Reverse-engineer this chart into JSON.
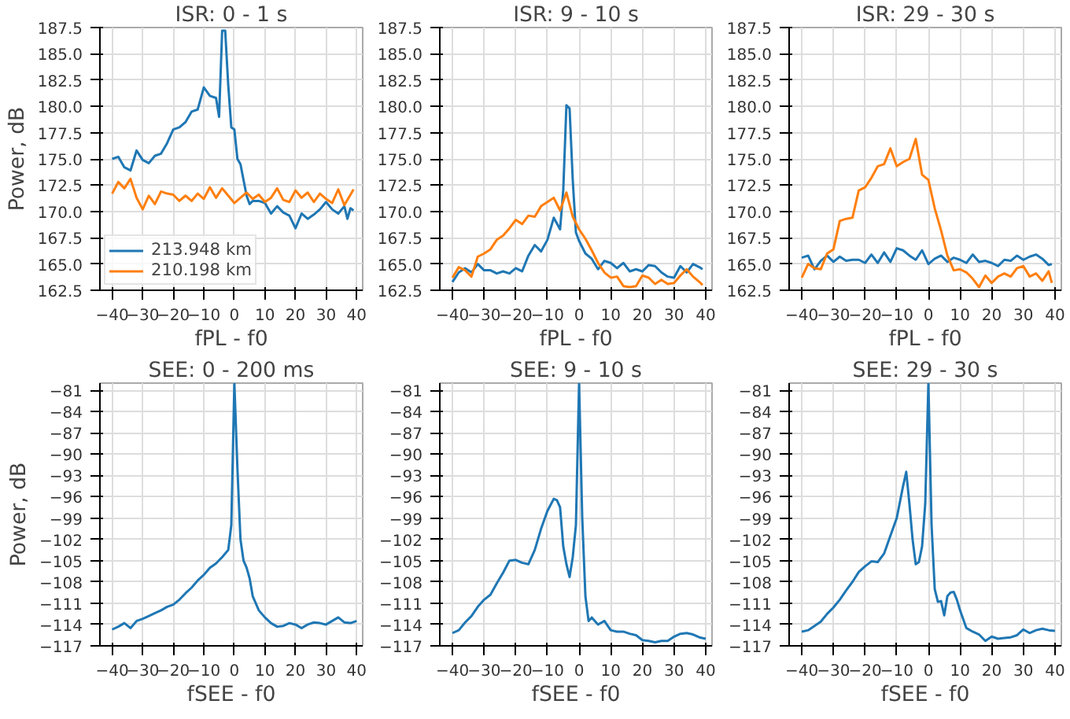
{
  "chart_data": [
    {
      "type": "line",
      "title": "ISR: 0 - 1 s",
      "xlabel": "fPL - f0",
      "ylabel": "Power, dB",
      "xlim": [
        -44,
        42
      ],
      "ylim": [
        162.5,
        187.5
      ],
      "xticks": [
        -40,
        -30,
        -20,
        -10,
        0,
        10,
        20,
        30,
        40
      ],
      "yticks": [
        {
          "value": 162.5,
          "label": "162.5"
        },
        {
          "value": 165,
          "label": "165.0"
        },
        {
          "value": 167.5,
          "label": "167.5"
        },
        {
          "value": 170,
          "label": "170.0"
        },
        {
          "value": 172.5,
          "label": "172.5"
        },
        {
          "value": 175,
          "label": "175.0"
        },
        {
          "value": 177.5,
          "label": "177.5"
        },
        {
          "value": 180,
          "label": "180.0"
        },
        {
          "value": 182.5,
          "label": "182.5"
        },
        {
          "value": 185,
          "label": "185.0"
        },
        {
          "value": 187.5,
          "label": "187.5"
        }
      ],
      "grid": true,
      "legend": "bottom left",
      "series": [
        {
          "name": "213.948 km",
          "color": "#1f77b4",
          "x": [
            -40,
            -38,
            -36,
            -34,
            -32,
            -30,
            -28,
            -26,
            -24,
            -22,
            -20,
            -18,
            -16,
            -14,
            -12,
            -10,
            -8,
            -6,
            -5,
            -4,
            -3,
            -2,
            -1,
            0,
            1,
            2,
            3,
            4,
            5,
            6,
            8,
            10,
            12,
            14,
            16,
            18,
            20,
            22,
            24,
            26,
            28,
            30,
            32,
            34,
            36,
            37,
            38,
            39
          ],
          "values": [
            175,
            175.2,
            174.2,
            173.9,
            175.8,
            174.9,
            174.6,
            175.3,
            175.5,
            176.5,
            177.8,
            178,
            178.5,
            179.5,
            179.7,
            181.8,
            181,
            180.8,
            179,
            187.2,
            187.2,
            182,
            178,
            177.8,
            175,
            174.5,
            173,
            171.5,
            170.7,
            171,
            171,
            170.8,
            169.8,
            170.5,
            169.9,
            169.6,
            168.4,
            169.8,
            169.3,
            169.7,
            170.2,
            170.9,
            170.2,
            169.8,
            170.5,
            169.3,
            170.3,
            170.1
          ]
        },
        {
          "name": "210.198 km",
          "color": "#ff7f0e",
          "x": [
            -40,
            -38,
            -36,
            -34,
            -32,
            -30,
            -28,
            -26,
            -24,
            -22,
            -20,
            -18,
            -16,
            -14,
            -12,
            -10,
            -8,
            -6,
            -4,
            -2,
            0,
            2,
            4,
            6,
            8,
            10,
            12,
            14,
            16,
            18,
            20,
            22,
            24,
            26,
            28,
            30,
            32,
            34,
            36,
            38,
            39
          ],
          "values": [
            171.7,
            172.8,
            172.2,
            173.1,
            171.3,
            170.2,
            171.5,
            170.7,
            171.9,
            171.7,
            171.6,
            171,
            171.5,
            171,
            171.7,
            171.2,
            172.3,
            171.3,
            172.2,
            171.5,
            170.8,
            171.3,
            171.8,
            171.2,
            171.6,
            170.9,
            171.3,
            172.2,
            171.1,
            170.9,
            172,
            171.3,
            171.8,
            170.9,
            171.7,
            171.2,
            170.8,
            172.1,
            170.6,
            171.6,
            172.1
          ]
        }
      ]
    },
    {
      "type": "line",
      "title": "ISR: 9 - 10 s",
      "xlabel": "fPL - f0",
      "xlim": [
        -44,
        42
      ],
      "ylim": [
        162.5,
        187.5
      ],
      "xticks": [
        -40,
        -30,
        -20,
        -10,
        0,
        10,
        20,
        30,
        40
      ],
      "yticks": [
        {
          "value": 162.5,
          "label": "162.5"
        },
        {
          "value": 165,
          "label": "165.0"
        },
        {
          "value": 167.5,
          "label": "167.5"
        },
        {
          "value": 170,
          "label": "170.0"
        },
        {
          "value": 172.5,
          "label": "172.5"
        },
        {
          "value": 175,
          "label": "175.0"
        },
        {
          "value": 177.5,
          "label": "177.5"
        },
        {
          "value": 180,
          "label": "180.0"
        },
        {
          "value": 182.5,
          "label": "182.5"
        },
        {
          "value": 185,
          "label": "185.0"
        },
        {
          "value": 187.5,
          "label": "187.5"
        }
      ],
      "grid": true,
      "series": [
        {
          "color": "#1f77b4",
          "x": [
            -40,
            -38,
            -36,
            -34,
            -32,
            -30,
            -28,
            -26,
            -24,
            -22,
            -20,
            -18,
            -16,
            -14,
            -12,
            -10,
            -8,
            -6,
            -5,
            -4,
            -3,
            -2,
            -1,
            0,
            2,
            4,
            6,
            8,
            10,
            12,
            14,
            16,
            18,
            20,
            22,
            24,
            26,
            28,
            30,
            32,
            34,
            36,
            38,
            39
          ],
          "values": [
            163.3,
            164.2,
            164.6,
            164.2,
            165,
            164.4,
            164.4,
            164.1,
            164.3,
            164.1,
            164.6,
            164.3,
            165.8,
            166.8,
            166.2,
            167.3,
            169.4,
            168.3,
            172,
            180.1,
            179.8,
            173,
            168,
            167.2,
            166,
            165.5,
            164.5,
            165.3,
            165.1,
            164.6,
            165.1,
            164.3,
            164.5,
            164.3,
            164.9,
            164.8,
            164.2,
            163.8,
            163.7,
            164.8,
            164.2,
            165,
            164.7,
            164.5
          ]
        },
        {
          "color": "#ff7f0e",
          "x": [
            -40,
            -38,
            -36,
            -34,
            -32,
            -30,
            -28,
            -26,
            -24,
            -22,
            -20,
            -18,
            -16,
            -14,
            -12,
            -10,
            -8,
            -6,
            -4,
            -2,
            0,
            2,
            4,
            6,
            8,
            10,
            12,
            14,
            16,
            18,
            20,
            22,
            24,
            26,
            28,
            30,
            32,
            34,
            36,
            38,
            39
          ],
          "values": [
            163.7,
            164.7,
            164.4,
            163.8,
            165.7,
            166,
            166.4,
            167.3,
            167.7,
            168.4,
            169.2,
            168.8,
            169.6,
            169.5,
            170.5,
            170.9,
            171.3,
            170.1,
            171.8,
            169.5,
            168.3,
            167.4,
            166.3,
            165.1,
            164.2,
            163.7,
            163.8,
            162.9,
            162.8,
            162.9,
            163.9,
            163.7,
            163.1,
            163.5,
            163.1,
            163.2,
            163.9,
            164.5,
            163.8,
            163.3,
            163
          ]
        }
      ]
    },
    {
      "type": "line",
      "title": "ISR: 29 - 30 s",
      "xlabel": "fPL - f0",
      "xlim": [
        -44,
        42
      ],
      "ylim": [
        162.5,
        187.5
      ],
      "xticks": [
        -40,
        -30,
        -20,
        -10,
        0,
        10,
        20,
        30,
        40
      ],
      "yticks": [
        {
          "value": 162.5,
          "label": "162.5"
        },
        {
          "value": 165,
          "label": "165.0"
        },
        {
          "value": 167.5,
          "label": "167.5"
        },
        {
          "value": 170,
          "label": "170.0"
        },
        {
          "value": 172.5,
          "label": "172.5"
        },
        {
          "value": 175,
          "label": "175.0"
        },
        {
          "value": 177.5,
          "label": "177.5"
        },
        {
          "value": 180,
          "label": "180.0"
        },
        {
          "value": 182.5,
          "label": "182.5"
        },
        {
          "value": 185,
          "label": "185.0"
        },
        {
          "value": 187.5,
          "label": "187.5"
        }
      ],
      "grid": true,
      "series": [
        {
          "color": "#1f77b4",
          "x": [
            -40,
            -38,
            -36,
            -34,
            -32,
            -30,
            -28,
            -26,
            -24,
            -22,
            -20,
            -18,
            -16,
            -14,
            -12,
            -10,
            -8,
            -6,
            -4,
            -2,
            0,
            2,
            4,
            6,
            8,
            10,
            12,
            14,
            16,
            18,
            20,
            22,
            24,
            26,
            28,
            30,
            32,
            34,
            36,
            38,
            39
          ],
          "values": [
            165.6,
            165.8,
            164.5,
            165.3,
            165.8,
            165.2,
            165.7,
            165.3,
            165.4,
            165.4,
            165.1,
            165.9,
            165.1,
            166.1,
            165.2,
            166.5,
            166.3,
            165.8,
            165.4,
            166.3,
            165,
            165.5,
            165.8,
            165.2,
            165.6,
            165.4,
            165.1,
            165.9,
            165.2,
            165.3,
            165.1,
            164.8,
            165.4,
            165.3,
            165.8,
            165.4,
            165.7,
            165.9,
            165.5,
            164.9,
            165
          ]
        },
        {
          "color": "#ff7f0e",
          "x": [
            -40,
            -38,
            -36,
            -34,
            -32,
            -30,
            -28,
            -26,
            -24,
            -22,
            -20,
            -18,
            -16,
            -14,
            -12,
            -10,
            -8,
            -6,
            -4,
            -2,
            0,
            2,
            4,
            6,
            8,
            10,
            12,
            14,
            16,
            18,
            20,
            22,
            24,
            26,
            28,
            30,
            32,
            34,
            36,
            38,
            39
          ],
          "values": [
            163.7,
            165,
            164.6,
            164.5,
            166,
            166.4,
            169.1,
            169.3,
            169.4,
            172,
            172.3,
            173.2,
            174.3,
            174.5,
            176,
            174.3,
            174.7,
            175,
            176.9,
            173.5,
            173,
            170.3,
            168.2,
            165.8,
            164.4,
            164.5,
            164.2,
            163.6,
            162.8,
            163.9,
            163.2,
            163.8,
            164.1,
            163.8,
            164.6,
            164.8,
            163.8,
            164.1,
            163.4,
            164.3,
            163.2
          ]
        }
      ]
    },
    {
      "type": "line",
      "title": "SEE: 0 - 200 ms",
      "xlabel": "fSEE - f0",
      "ylabel": "Power, dB",
      "xlim": [
        -44,
        42
      ],
      "ylim": [
        -117,
        -80
      ],
      "xticks": [
        -40,
        -30,
        -20,
        -10,
        0,
        10,
        20,
        30,
        40
      ],
      "yticks": [
        {
          "value": -117,
          "label": "−117"
        },
        {
          "value": -114,
          "label": "−114"
        },
        {
          "value": -111,
          "label": "−111"
        },
        {
          "value": -108,
          "label": "−108"
        },
        {
          "value": -105,
          "label": "−105"
        },
        {
          "value": -102,
          "label": "−102"
        },
        {
          "value": -99,
          "label": "−99"
        },
        {
          "value": -96,
          "label": "−96"
        },
        {
          "value": -93,
          "label": "−93"
        },
        {
          "value": -90,
          "label": "−90"
        },
        {
          "value": -87,
          "label": "−87"
        },
        {
          "value": -84,
          "label": "−84"
        },
        {
          "value": -81,
          "label": "−81"
        }
      ],
      "grid": true,
      "series": [
        {
          "color": "#1f77b4",
          "x": [
            -40,
            -38,
            -36,
            -34,
            -32,
            -30,
            -28,
            -26,
            -24,
            -22,
            -20,
            -18,
            -16,
            -14,
            -12,
            -10,
            -8,
            -6,
            -4,
            -2,
            -1,
            0,
            1,
            2,
            3,
            4,
            5,
            6,
            8,
            10,
            12,
            14,
            16,
            18,
            20,
            22,
            24,
            26,
            28,
            30,
            32,
            34,
            36,
            38,
            40
          ],
          "values": [
            -114.7,
            -114.3,
            -113.8,
            -114.5,
            -113.5,
            -113.2,
            -112.8,
            -112.4,
            -112,
            -111.5,
            -111.2,
            -110.5,
            -109.6,
            -108.8,
            -107.8,
            -107,
            -106,
            -105.4,
            -104.5,
            -103.5,
            -100,
            -80,
            -92,
            -102,
            -105,
            -106,
            -107.5,
            -110,
            -112,
            -113,
            -113.8,
            -114.3,
            -114.2,
            -113.8,
            -114,
            -114.5,
            -114,
            -113.7,
            -113.8,
            -114,
            -113.5,
            -113,
            -113.7,
            -113.8,
            -113.5
          ]
        }
      ]
    },
    {
      "type": "line",
      "title": "SEE: 9 - 10 s",
      "xlabel": "fSEE - f0",
      "xlim": [
        -44,
        42
      ],
      "ylim": [
        -117,
        -80
      ],
      "xticks": [
        -40,
        -30,
        -20,
        -10,
        0,
        10,
        20,
        30,
        40
      ],
      "yticks": [
        {
          "value": -117,
          "label": "−117"
        },
        {
          "value": -114,
          "label": "−114"
        },
        {
          "value": -111,
          "label": "−111"
        },
        {
          "value": -108,
          "label": "−108"
        },
        {
          "value": -105,
          "label": "−105"
        },
        {
          "value": -102,
          "label": "−102"
        },
        {
          "value": -99,
          "label": "−99"
        },
        {
          "value": -96,
          "label": "−96"
        },
        {
          "value": -93,
          "label": "−93"
        },
        {
          "value": -90,
          "label": "−90"
        },
        {
          "value": -87,
          "label": "−87"
        },
        {
          "value": -84,
          "label": "−84"
        },
        {
          "value": -81,
          "label": "−81"
        }
      ],
      "grid": true,
      "series": [
        {
          "color": "#1f77b4",
          "x": [
            -40,
            -38,
            -36,
            -34,
            -32,
            -30,
            -28,
            -26,
            -24,
            -22,
            -20,
            -18,
            -16,
            -14,
            -12,
            -10,
            -8,
            -7,
            -6,
            -5,
            -4,
            -3,
            -2,
            -1,
            0,
            1,
            2,
            3,
            4,
            6,
            8,
            10,
            12,
            14,
            16,
            18,
            20,
            22,
            24,
            26,
            28,
            30,
            32,
            34,
            36,
            38,
            40
          ],
          "values": [
            -115.2,
            -114.8,
            -113.7,
            -112.8,
            -111.5,
            -110.5,
            -109.8,
            -108.2,
            -106.7,
            -105,
            -104.9,
            -105.3,
            -105.5,
            -103.5,
            -100.5,
            -98,
            -96.3,
            -96.5,
            -97.5,
            -103,
            -105.5,
            -107.3,
            -104.5,
            -100,
            -80,
            -99,
            -110,
            -113.5,
            -113,
            -114,
            -113.5,
            -114.8,
            -115,
            -115,
            -115.3,
            -115.5,
            -116.2,
            -116.3,
            -116.5,
            -116.3,
            -116.3,
            -115.7,
            -115.3,
            -115.2,
            -115.4,
            -115.8,
            -116
          ]
        }
      ]
    },
    {
      "type": "line",
      "title": "SEE: 29 - 30 s",
      "xlabel": "fSEE - f0",
      "xlim": [
        -44,
        42
      ],
      "ylim": [
        -117,
        -80
      ],
      "xticks": [
        -40,
        -30,
        -20,
        -10,
        0,
        10,
        20,
        30,
        40
      ],
      "yticks": [
        {
          "value": -117,
          "label": "−117"
        },
        {
          "value": -114,
          "label": "−114"
        },
        {
          "value": -111,
          "label": "−111"
        },
        {
          "value": -108,
          "label": "−108"
        },
        {
          "value": -105,
          "label": "−105"
        },
        {
          "value": -102,
          "label": "−102"
        },
        {
          "value": -99,
          "label": "−99"
        },
        {
          "value": -96,
          "label": "−96"
        },
        {
          "value": -93,
          "label": "−93"
        },
        {
          "value": -90,
          "label": "−90"
        },
        {
          "value": -87,
          "label": "−87"
        },
        {
          "value": -84,
          "label": "−84"
        },
        {
          "value": -81,
          "label": "−81"
        }
      ],
      "grid": true,
      "series": [
        {
          "color": "#1f77b4",
          "x": [
            -40,
            -38,
            -36,
            -34,
            -32,
            -30,
            -28,
            -26,
            -24,
            -22,
            -20,
            -18,
            -16,
            -14,
            -12,
            -10,
            -8,
            -7,
            -6,
            -5,
            -4,
            -3,
            -2,
            -1,
            0,
            1,
            2,
            3,
            4,
            5,
            6,
            7,
            8,
            9,
            10,
            12,
            14,
            16,
            18,
            20,
            22,
            24,
            26,
            28,
            30,
            32,
            34,
            36,
            38,
            40
          ],
          "values": [
            -115,
            -114.8,
            -114.2,
            -113.6,
            -112.5,
            -111.6,
            -110.5,
            -109.2,
            -108,
            -106.6,
            -105.8,
            -105.1,
            -105.2,
            -104,
            -101.5,
            -99,
            -94.5,
            -92.5,
            -97,
            -102,
            -105.5,
            -105.2,
            -103,
            -97,
            -80,
            -100,
            -109,
            -110.8,
            -110.7,
            -112.7,
            -110,
            -109.5,
            -109.4,
            -110.5,
            -112,
            -114.5,
            -115,
            -115.4,
            -116.3,
            -115.7,
            -116,
            -115.9,
            -115.8,
            -115.5,
            -114.7,
            -115.2,
            -114.8,
            -114.6,
            -114.8,
            -114.9
          ]
        }
      ]
    }
  ]
}
